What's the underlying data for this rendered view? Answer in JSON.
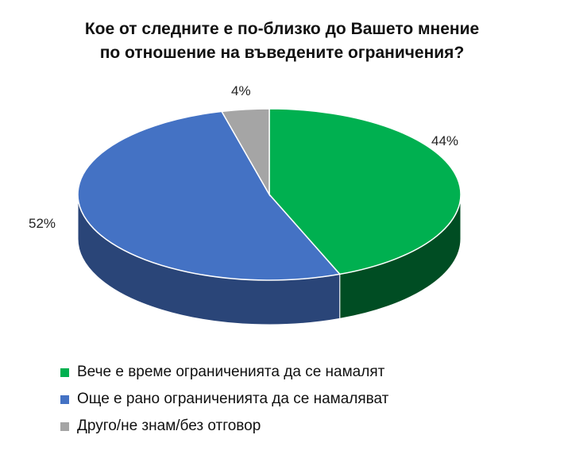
{
  "chart_data": {
    "type": "pie",
    "title_lines": [
      "Кое от следните е по-близко до Вашето мнение",
      "по отношение на въведените ограничения?"
    ],
    "slices": [
      {
        "name": "Вече е време ограниченията да се намалят",
        "value": 44,
        "label": "44%",
        "color": "#00b050",
        "side_color": "#004d23"
      },
      {
        "name": "Още е рано ограниченията да се намаляват",
        "value": 52,
        "label": "52%",
        "color": "#4472c4",
        "side_color": "#2a4578"
      },
      {
        "name": "Друго/не знам/без отговор",
        "value": 4,
        "label": "4%",
        "color": "#a5a5a5",
        "side_color": "#6e6e6e"
      }
    ],
    "style": "3d",
    "legend_position": "bottom"
  }
}
